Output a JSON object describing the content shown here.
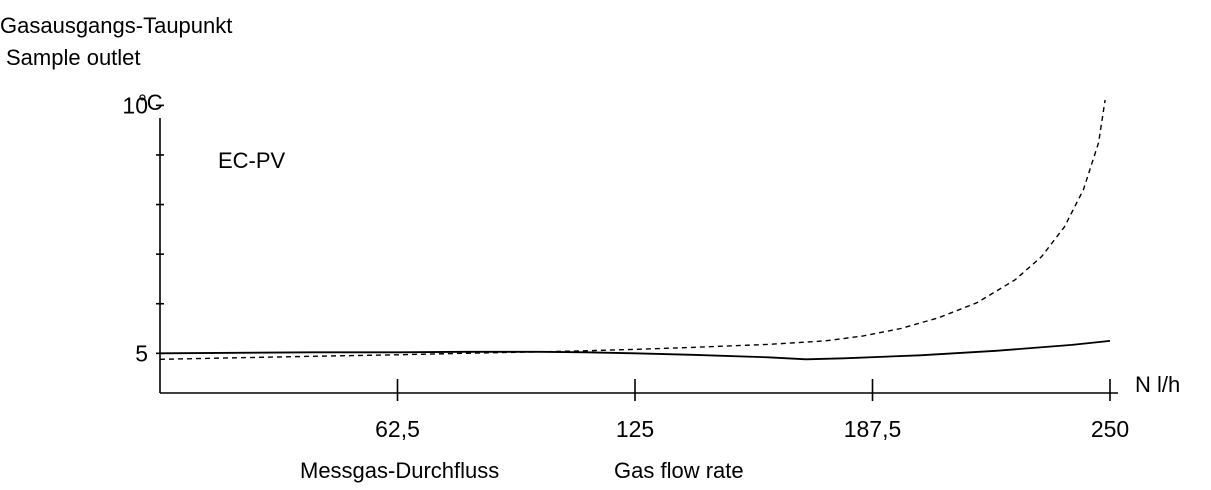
{
  "chart_data": {
    "type": "line",
    "title_de": "Gasausgangs-Taupunkt",
    "title_en": "Sample outlet",
    "y_unit": "°C",
    "x_unit": "N l/h",
    "xlabel_de": "Messgas-Durchfluss",
    "xlabel_en": "Gas flow rate",
    "annotation": "EC-PV",
    "xlim": [
      0,
      250
    ],
    "ylim": [
      4.2,
      10.35
    ],
    "x_ticks": [
      62.5,
      125,
      187.5,
      250
    ],
    "x_tick_labels": [
      "62,5",
      "125",
      "187,5",
      "250"
    ],
    "y_ticks": [
      5,
      6,
      7,
      8,
      9,
      10
    ],
    "y_tick_labels": {
      "5": "5",
      "10": "10"
    },
    "grid": false,
    "legend": "none",
    "series": [
      {
        "style": "solid",
        "x": [
          0,
          20,
          40,
          62.5,
          80,
          100,
          112,
          125,
          140,
          160,
          170,
          180,
          200,
          220,
          240,
          250
        ],
        "y": [
          5.0,
          5.01,
          5.02,
          5.02,
          5.03,
          5.03,
          5.02,
          5.0,
          4.97,
          4.92,
          4.88,
          4.9,
          4.96,
          5.05,
          5.17,
          5.25
        ]
      },
      {
        "style": "dashed",
        "x": [
          0,
          20,
          40,
          62.5,
          80,
          100,
          112,
          125,
          140,
          160,
          175,
          185,
          195,
          205,
          215,
          225,
          232,
          238,
          243,
          247,
          250
        ],
        "y": [
          4.88,
          4.91,
          4.94,
          4.97,
          5.0,
          5.03,
          5.05,
          5.08,
          5.12,
          5.18,
          5.25,
          5.35,
          5.5,
          5.72,
          6.02,
          6.48,
          6.95,
          7.55,
          8.3,
          9.25,
          10.75
        ]
      }
    ]
  }
}
